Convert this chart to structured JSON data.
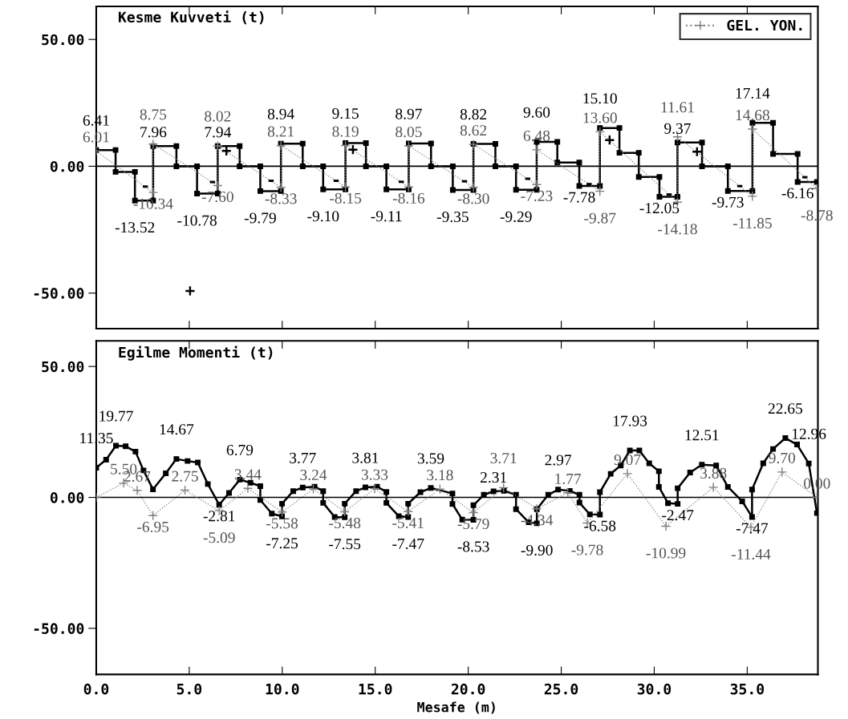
{
  "chart_data": [
    {
      "type": "line",
      "title": "Kesme Kuvveti (t)",
      "xlim": [
        0,
        38.8
      ],
      "ylim": [
        -64,
        63
      ],
      "xticks": [
        {
          "value": 0,
          "label": null
        },
        {
          "value": 5,
          "label": null
        },
        {
          "value": 10,
          "label": null
        },
        {
          "value": 15,
          "label": null
        },
        {
          "value": 20,
          "label": null
        },
        {
          "value": 25,
          "label": null
        },
        {
          "value": 30,
          "label": null
        },
        {
          "value": 35,
          "label": null
        }
      ],
      "yticks": [
        {
          "value": 50,
          "label": "50.00"
        },
        {
          "value": 0,
          "label": "0.00"
        },
        {
          "value": -50,
          "label": "-50.00"
        }
      ],
      "tick_labels": "y",
      "grid": false,
      "legend": "top right",
      "ref_lines": [
        {
          "axis": "y",
          "value": 0,
          "color": "#000000"
        }
      ],
      "series": [
        {
          "color": "#000000",
          "marker": "square",
          "line_style": "solid",
          "x": [
            0,
            1.04,
            1.04,
            2.08,
            2.08,
            3.06,
            3.06,
            4.31,
            4.31,
            5.42,
            5.42,
            6.53,
            6.53,
            7.71,
            7.71,
            8.82,
            8.82,
            9.93,
            9.93,
            11.1,
            11.1,
            12.2,
            12.2,
            13.4,
            13.4,
            14.5,
            14.5,
            15.6,
            15.6,
            16.8,
            16.8,
            18.0,
            18.0,
            19.17,
            19.17,
            20.28,
            20.28,
            21.46,
            21.46,
            22.57,
            22.57,
            23.68,
            23.68,
            24.79,
            24.79,
            25.97,
            25.97,
            27.08,
            27.08,
            28.13,
            28.13,
            29.17,
            29.17,
            30.28,
            30.28,
            31.25,
            31.25,
            32.57,
            32.57,
            33.96,
            33.96,
            35.28,
            35.28,
            36.39,
            36.39,
            37.71,
            37.71,
            38.75
          ],
          "values": [
            6.41,
            6.41,
            -2.2,
            -2.2,
            -13.52,
            -13.52,
            7.96,
            7.96,
            0,
            0,
            -10.78,
            -10.78,
            7.94,
            7.94,
            0,
            0,
            -9.79,
            -9.79,
            8.94,
            8.94,
            0,
            0,
            -9.1,
            -9.1,
            9.15,
            9.15,
            0,
            0,
            -9.11,
            -9.11,
            8.97,
            8.97,
            0,
            0,
            -9.35,
            -9.35,
            8.82,
            8.82,
            0,
            0,
            -9.29,
            -9.29,
            9.6,
            9.6,
            1.5,
            1.5,
            -7.78,
            -7.78,
            15.1,
            15.1,
            5.3,
            5.3,
            -4.2,
            -4.2,
            -12.05,
            -12.05,
            9.37,
            9.37,
            0,
            0,
            -9.73,
            -9.73,
            17.14,
            17.14,
            4.9,
            4.9,
            -6.16,
            -6.16
          ],
          "value_labels": [
            "6.41",
            null,
            null,
            null,
            "-13.52",
            null,
            "7.96",
            null,
            null,
            null,
            "-10.78",
            null,
            "7.94",
            null,
            null,
            null,
            "-9.79",
            null,
            "8.94",
            null,
            null,
            null,
            "-9.10",
            null,
            "9.15",
            null,
            null,
            null,
            "-9.11",
            null,
            "8.97",
            null,
            null,
            null,
            "-9.35",
            null,
            "8.82",
            null,
            null,
            null,
            "-9.29",
            null,
            "9.60",
            null,
            null,
            null,
            "-7.78",
            null,
            "15.10",
            null,
            null,
            null,
            null,
            null,
            "-12.05",
            null,
            "9.37",
            null,
            null,
            null,
            "-9.73",
            null,
            "17.14",
            null,
            null,
            null,
            "-6.16",
            null
          ]
        },
        {
          "name": "GEL. YON.",
          "color": "#808080",
          "marker": "cross",
          "line_style": "dotted",
          "x": [
            0,
            3.06,
            3.06,
            6.53,
            6.53,
            9.93,
            9.93,
            13.4,
            13.4,
            16.8,
            16.8,
            20.28,
            20.28,
            23.68,
            23.68,
            27.08,
            27.08,
            31.25,
            31.25,
            35.28,
            35.28,
            38.75
          ],
          "values": [
            6.01,
            -10.34,
            8.75,
            -7.6,
            8.02,
            -8.33,
            8.21,
            -8.15,
            8.19,
            -8.16,
            8.05,
            -8.3,
            8.62,
            -7.23,
            6.48,
            -9.87,
            13.6,
            -14.18,
            11.61,
            -11.85,
            14.68,
            -8.78
          ],
          "value_labels": [
            "6.01",
            "-10.34",
            "8.75",
            "-7.60",
            "8.02",
            "-8.33",
            "8.21",
            "-8.15",
            "8.19",
            "-8.16",
            "8.05",
            "-8.30",
            "8.62",
            "-7.23",
            "6.48",
            "-9.87",
            "13.60",
            "-14.18",
            "11.61",
            "-11.85",
            "14.68",
            "-8.78"
          ]
        }
      ],
      "annotations": [
        "+",
        {
          "text": "-",
          "x": 2.64,
          "y": -8.1
        },
        {
          "text": "-",
          "x": 6.25,
          "y": -6.3
        },
        {
          "text": "-",
          "x": 9.4,
          "y": -5.8
        },
        {
          "text": "-",
          "x": 12.9,
          "y": -5.8
        },
        {
          "text": "-",
          "x": 16.4,
          "y": -6.2
        },
        {
          "text": "-",
          "x": 19.8,
          "y": -6.0
        },
        {
          "text": "-",
          "x": 23.2,
          "y": -5.0
        },
        {
          "text": "-",
          "x": 26.5,
          "y": -7.1
        },
        {
          "text": "-",
          "x": 30.8,
          "y": -11.2
        },
        {
          "text": "-",
          "x": 34.6,
          "y": -7.9
        },
        {
          "text": "-",
          "x": 38.1,
          "y": -4.4
        },
        {
          "text": "+",
          "x": 7.0,
          "y": 5.8
        },
        {
          "text": "+",
          "x": 13.8,
          "y": 6.3
        },
        {
          "text": "+",
          "x": 27.6,
          "y": 10.1
        },
        {
          "text": "+",
          "x": 32.3,
          "y": 5.5
        }
      ]
    },
    {
      "type": "line",
      "title": "Egilme Momenti (t)",
      "xlabel": "Mesafe (m)",
      "xlim": [
        0,
        38.8
      ],
      "ylim": [
        -67.6,
        59.8
      ],
      "xticks": [
        {
          "value": 0,
          "label": "0.0"
        },
        {
          "value": 5,
          "label": "5.0"
        },
        {
          "value": 10,
          "label": "10.0"
        },
        {
          "value": 15,
          "label": "15.0"
        },
        {
          "value": 20,
          "label": "20.0"
        },
        {
          "value": 25,
          "label": "25.0"
        },
        {
          "value": 30,
          "label": "30.0"
        },
        {
          "value": 35,
          "label": "35.0"
        }
      ],
      "yticks": [
        {
          "value": 50,
          "label": "50.00"
        },
        {
          "value": 0,
          "label": "0.00"
        },
        {
          "value": -50,
          "label": "-50.00"
        }
      ],
      "grid": false,
      "ref_lines": [
        {
          "axis": "y",
          "value": 0,
          "color": "#000000"
        }
      ],
      "series": [
        {
          "color": "#000000",
          "marker": "square",
          "line_style": "solid",
          "x": [
            0,
            0.53,
            1.06,
            1.58,
            2.11,
            2.54,
            3.05,
            3.74,
            4.31,
            4.91,
            5.46,
            6.0,
            6.61,
            7.14,
            7.72,
            8.29,
            8.82,
            8.82,
            9.44,
            9.99,
            9.99,
            10.59,
            11.1,
            11.74,
            12.2,
            12.2,
            12.82,
            13.36,
            13.36,
            13.97,
            14.47,
            15.1,
            15.6,
            15.6,
            16.27,
            16.77,
            16.77,
            17.43,
            17.99,
            19.15,
            19.15,
            19.68,
            20.28,
            20.28,
            20.84,
            21.36,
            21.92,
            22.57,
            22.57,
            23.25,
            23.69,
            23.69,
            24.3,
            24.83,
            25.46,
            25.98,
            25.98,
            26.54,
            27.08,
            27.08,
            27.66,
            28.2,
            28.69,
            29.2,
            29.73,
            30.25,
            30.25,
            30.74,
            31.26,
            31.26,
            31.93,
            32.56,
            33.33,
            33.96,
            34.73,
            35.26,
            35.26,
            35.86,
            36.39,
            37.05,
            37.68,
            38.31,
            38.75
          ],
          "values": [
            11.35,
            14.4,
            19.77,
            19.5,
            17.5,
            10.3,
            3.1,
            9.2,
            14.67,
            13.9,
            13.3,
            5.1,
            -2.81,
            1.7,
            6.79,
            5.6,
            4.3,
            -1.0,
            -6.2,
            -7.25,
            -2.4,
            2.4,
            3.77,
            4.1,
            2.4,
            -2.1,
            -7.5,
            -7.55,
            -2.4,
            2.4,
            3.81,
            4.1,
            2.1,
            -2.1,
            -7.2,
            -7.47,
            -2.4,
            2.0,
            3.59,
            1.5,
            -2.5,
            -8.5,
            -8.53,
            -3.0,
            1.0,
            2.31,
            2.5,
            1.0,
            -4.5,
            -9.5,
            -9.9,
            -4.5,
            1.0,
            2.97,
            2.5,
            1.0,
            -2.0,
            -6.5,
            -6.58,
            2.0,
            9.0,
            12.2,
            17.93,
            17.9,
            13.0,
            10.0,
            4.0,
            -2.2,
            -2.47,
            3.5,
            9.5,
            12.51,
            12.2,
            4.0,
            -1.5,
            -7.47,
            3.0,
            13.0,
            18.5,
            22.65,
            20.2,
            12.96,
            -6.0
          ],
          "value_labels": [
            "11.35",
            null,
            "19.77",
            null,
            null,
            null,
            null,
            null,
            "14.67",
            null,
            null,
            null,
            "-2.81",
            null,
            "6.79",
            null,
            null,
            null,
            null,
            "-7.25",
            null,
            null,
            "3.77",
            null,
            null,
            null,
            null,
            "-7.55",
            null,
            null,
            "3.81",
            null,
            null,
            null,
            null,
            "-7.47",
            null,
            null,
            "3.59",
            null,
            null,
            null,
            "-8.53",
            null,
            null,
            "2.31",
            null,
            null,
            null,
            null,
            "-9.90",
            null,
            null,
            "2.97",
            null,
            null,
            null,
            null,
            "-6.58",
            null,
            null,
            null,
            "17.93",
            null,
            null,
            null,
            null,
            null,
            "-2.47",
            null,
            null,
            "12.51",
            null,
            null,
            null,
            "-7.47",
            null,
            null,
            null,
            "22.65",
            null,
            "12.96",
            null
          ]
        },
        {
          "color": "#808080",
          "marker": "cross",
          "line_style": "dotted",
          "x": [
            0,
            1.47,
            2.2,
            3.05,
            4.77,
            6.61,
            8.15,
            9.99,
            11.67,
            13.36,
            14.97,
            16.77,
            18.48,
            20.28,
            21.9,
            23.69,
            25.35,
            26.4,
            28.56,
            30.63,
            33.18,
            35.2,
            36.87,
            38.75
          ],
          "values": [
            0,
            5.5,
            2.67,
            -6.95,
            2.75,
            -5.09,
            3.44,
            -5.58,
            3.24,
            -5.48,
            3.33,
            -5.41,
            3.18,
            -5.79,
            3.71,
            -4.34,
            1.77,
            -9.78,
            9.07,
            -10.99,
            3.88,
            -11.44,
            9.7,
            0.0
          ],
          "value_labels": [
            null,
            "5.50",
            "2.67",
            "-6.95",
            "2.75",
            "-5.09",
            "3.44",
            "-5.58",
            "3.24",
            "-5.48",
            "3.33",
            "-5.41",
            "3.18",
            "-5.79",
            "3.71",
            "-4.34",
            "1.77",
            "-9.78",
            "9.07",
            "-10.99",
            "3.88",
            "-11.44",
            "9.70",
            "0.00"
          ]
        }
      ]
    }
  ]
}
